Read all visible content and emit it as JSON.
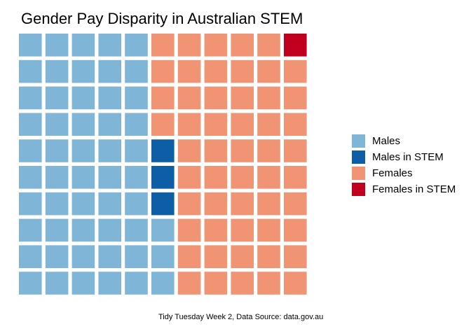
{
  "chart_data": {
    "type": "waffle",
    "title": "Gender Pay Disparity in Australian STEM",
    "caption": "Tidy Tuesday Week 2, Data Source: data.gov.au",
    "grid": {
      "columns": 11,
      "rows": 10
    },
    "fill_order": "column-wise, bottom to top, left to right",
    "series": [
      {
        "name": "Males",
        "value": 53,
        "color": "#7fb5d7"
      },
      {
        "name": "Males in STEM",
        "value": 3,
        "color": "#0e5ea6"
      },
      {
        "name": "Females",
        "value": 53,
        "color": "#f09474"
      },
      {
        "name": "Females in STEM",
        "value": 1,
        "color": "#c0001e"
      }
    ],
    "legend_position": "right"
  }
}
